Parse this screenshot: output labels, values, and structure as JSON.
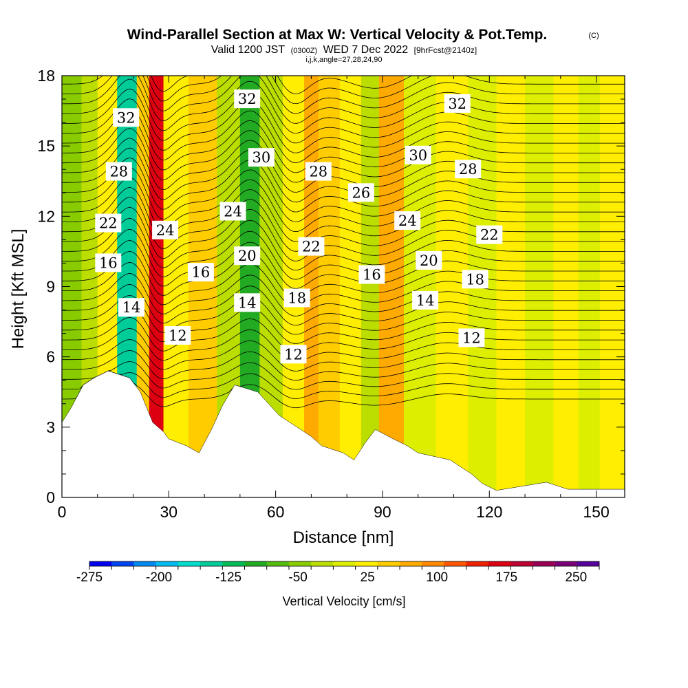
{
  "chart_data": {
    "type": "heatmap",
    "title": "Wind-Parallel Section at Max W: Vertical Velocity & Pot.Temp.",
    "title_suffix": "(C)",
    "subtitle": {
      "valid": "Valid 1200 JST",
      "utc": "(0300Z)",
      "date": "WED 7 Dec 2022",
      "forecast": "[9hrFcst@2140z]"
    },
    "grid_info": "i,j,k,angle=27,28,24,90",
    "xlabel": "Distance [nm]",
    "ylabel": "Height [Kft MSL]",
    "xlim": [
      0,
      158
    ],
    "ylim": [
      0,
      18
    ],
    "x_ticks": [
      0,
      30,
      60,
      90,
      120,
      150
    ],
    "y_ticks": [
      0,
      3,
      6,
      9,
      12,
      15,
      18
    ],
    "colorbar": {
      "label": "Vertical Velocity [cm/s]",
      "range": [
        -275,
        275
      ],
      "tick_labels": [
        -275,
        -200,
        -125,
        -50,
        25,
        100,
        175,
        250
      ],
      "colors": [
        "#0000ee",
        "#0044ee",
        "#0088ee",
        "#00bbee",
        "#00ddcc",
        "#00cc99",
        "#00bb55",
        "#22aa22",
        "#55bb11",
        "#88cc00",
        "#bbdd00",
        "#ddee00",
        "#ffee00",
        "#ffcc00",
        "#ffaa00",
        "#ff8800",
        "#ff5500",
        "#ee2200",
        "#dd0011",
        "#bb0033",
        "#990055",
        "#770077",
        "#550099"
      ]
    },
    "vertical_velocity_columns": [
      {
        "x": 3,
        "w": -55
      },
      {
        "x": 8,
        "w": -30
      },
      {
        "x": 12,
        "w": 25
      },
      {
        "x": 19,
        "w": -150
      },
      {
        "x": 23,
        "w": 55
      },
      {
        "x": 26,
        "w": 170
      },
      {
        "x": 31,
        "w": 20
      },
      {
        "x": 40,
        "w": 45
      },
      {
        "x": 47,
        "w": -15
      },
      {
        "x": 53,
        "w": -90
      },
      {
        "x": 58,
        "w": -25
      },
      {
        "x": 66,
        "w": 25
      },
      {
        "x": 70,
        "w": 80
      },
      {
        "x": 74,
        "w": 45
      },
      {
        "x": 82,
        "w": 15
      },
      {
        "x": 86,
        "w": -20
      },
      {
        "x": 92,
        "w": 60
      },
      {
        "x": 100,
        "w": 10
      },
      {
        "x": 110,
        "w": 20
      },
      {
        "x": 118,
        "w": 5
      },
      {
        "x": 126,
        "w": 35
      },
      {
        "x": 134,
        "w": 10
      },
      {
        "x": 142,
        "w": 25
      },
      {
        "x": 148,
        "w": -5
      },
      {
        "x": 154,
        "w": 15
      }
    ],
    "potential_temperature_labels": [
      {
        "value": "32",
        "x": 18,
        "y": 16.2
      },
      {
        "value": "28",
        "x": 16,
        "y": 13.9
      },
      {
        "value": "22",
        "x": 13,
        "y": 11.7
      },
      {
        "value": "16",
        "x": 13,
        "y": 10.0
      },
      {
        "value": "14",
        "x": 19.5,
        "y": 8.1
      },
      {
        "value": "24",
        "x": 29,
        "y": 11.4
      },
      {
        "value": "16",
        "x": 39,
        "y": 9.6
      },
      {
        "value": "12",
        "x": 32.5,
        "y": 6.9
      },
      {
        "value": "32",
        "x": 52,
        "y": 17.0
      },
      {
        "value": "30",
        "x": 56,
        "y": 14.5
      },
      {
        "value": "24",
        "x": 48,
        "y": 12.2
      },
      {
        "value": "20",
        "x": 52,
        "y": 10.3
      },
      {
        "value": "14",
        "x": 52,
        "y": 8.3
      },
      {
        "value": "28",
        "x": 72,
        "y": 13.9
      },
      {
        "value": "22",
        "x": 70,
        "y": 10.7
      },
      {
        "value": "18",
        "x": 66,
        "y": 8.5
      },
      {
        "value": "12",
        "x": 65,
        "y": 6.1
      },
      {
        "value": "26",
        "x": 84,
        "y": 13.0
      },
      {
        "value": "16",
        "x": 87,
        "y": 9.5
      },
      {
        "value": "30",
        "x": 100,
        "y": 14.6
      },
      {
        "value": "24",
        "x": 97,
        "y": 11.8
      },
      {
        "value": "20",
        "x": 103,
        "y": 10.1
      },
      {
        "value": "14",
        "x": 102,
        "y": 8.4
      },
      {
        "value": "32",
        "x": 111,
        "y": 16.8
      },
      {
        "value": "28",
        "x": 114,
        "y": 14.0
      },
      {
        "value": "22",
        "x": 120,
        "y": 11.2
      },
      {
        "value": "18",
        "x": 116,
        "y": 9.3
      },
      {
        "value": "12",
        "x": 115,
        "y": 6.8
      }
    ],
    "terrain": [
      [
        0,
        3.2
      ],
      [
        2.5,
        3.8
      ],
      [
        6,
        4.8
      ],
      [
        9,
        5.1
      ],
      [
        13,
        5.4
      ],
      [
        19,
        5.1
      ],
      [
        22,
        4.5
      ],
      [
        25.5,
        3.2
      ],
      [
        28.5,
        2.8
      ],
      [
        30,
        2.5
      ],
      [
        35,
        2.2
      ],
      [
        38.5,
        1.9
      ],
      [
        42,
        2.9
      ],
      [
        45,
        3.9
      ],
      [
        48.5,
        4.8
      ],
      [
        55,
        4.5
      ],
      [
        58,
        4.0
      ],
      [
        61,
        3.5
      ],
      [
        64,
        3.2
      ],
      [
        67,
        2.9
      ],
      [
        70,
        2.6
      ],
      [
        73,
        2.2
      ],
      [
        79,
        1.9
      ],
      [
        82,
        1.6
      ],
      [
        85,
        2.3
      ],
      [
        88,
        2.9
      ],
      [
        93,
        2.5
      ],
      [
        97,
        2.2
      ],
      [
        100,
        1.9
      ],
      [
        109,
        1.6
      ],
      [
        112,
        1.3
      ],
      [
        115,
        1.0
      ],
      [
        118,
        0.6
      ],
      [
        122,
        0.3
      ],
      [
        136,
        0.65
      ],
      [
        142,
        0.35
      ],
      [
        158,
        0.35
      ]
    ]
  }
}
